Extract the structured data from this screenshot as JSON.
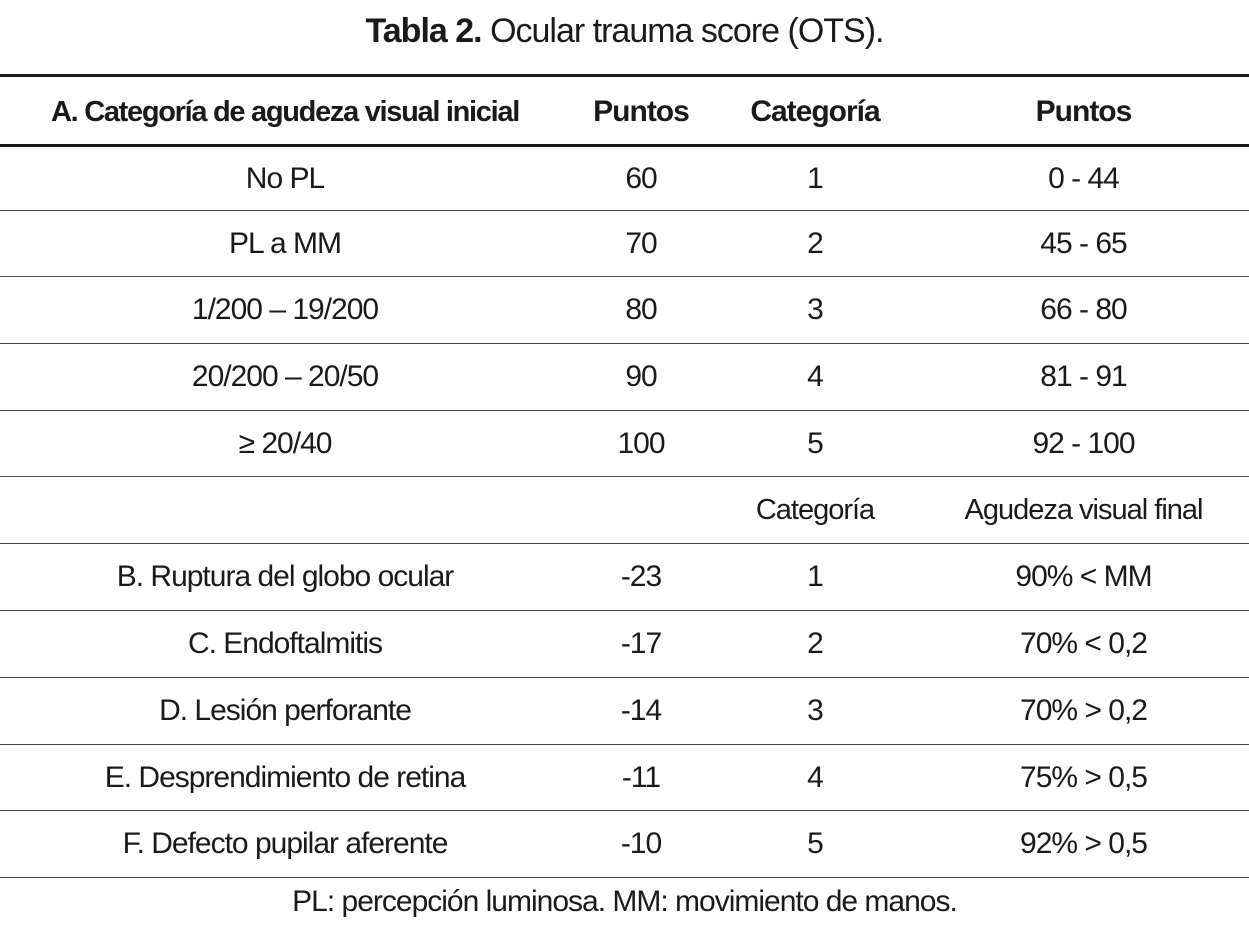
{
  "title": {
    "label": "Tabla 2.",
    "text": "Ocular trauma score (OTS)."
  },
  "table": {
    "headers": [
      "A. Categoría de agudeza visual inicial",
      "Puntos",
      "Categoría",
      "Puntos"
    ],
    "rows_a": [
      [
        "No PL",
        "60",
        "1",
        "0 - 44"
      ],
      [
        "PL a MM",
        "70",
        "2",
        "45 - 65"
      ],
      [
        "1/200 – 19/200",
        "80",
        "3",
        "66 - 80"
      ],
      [
        "20/200 – 20/50",
        "90",
        "4",
        "81 - 91"
      ],
      [
        "≥ 20/40",
        "100",
        "5",
        "92 - 100"
      ]
    ],
    "subheaders": [
      "",
      "",
      "Categoría",
      "Agudeza visual final"
    ],
    "rows_b": [
      [
        "B. Ruptura del globo ocular",
        "-23",
        "1",
        "90% < MM"
      ],
      [
        "C. Endoftalmitis",
        "-17",
        "2",
        "70% < 0,2"
      ],
      [
        "D. Lesión perforante",
        "-14",
        "3",
        "70% > 0,2"
      ],
      [
        "E. Desprendimiento de retina",
        "-11",
        "4",
        "75% > 0,5"
      ],
      [
        "F. Defecto pupilar aferente",
        "-10",
        "5",
        "92% > 0,5"
      ]
    ]
  },
  "footnote": "PL: percepción luminosa. MM: movimiento de manos."
}
